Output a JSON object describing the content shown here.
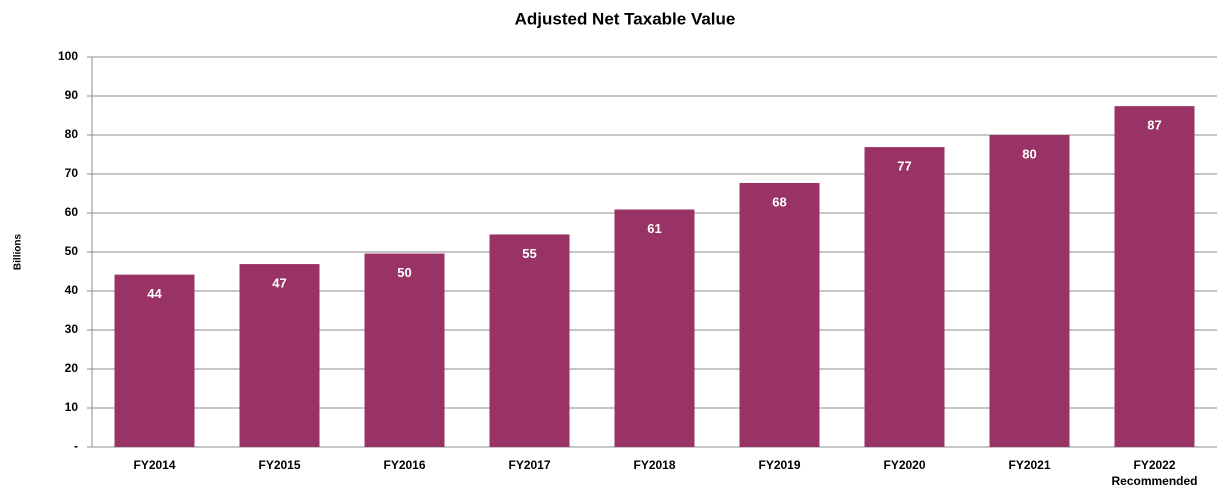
{
  "chart_data": {
    "type": "bar",
    "title": "Adjusted Net Taxable Value",
    "y_label": "Billions",
    "categories": [
      "FY2014",
      "FY2015",
      "FY2016",
      "FY2017",
      "FY2018",
      "FY2019",
      "FY2020",
      "FY2021",
      "FY2022\nRecommended"
    ],
    "values": [
      44.2,
      46.9,
      49.6,
      54.5,
      60.9,
      67.7,
      76.9,
      80.0,
      87.4
    ],
    "value_labels": [
      "44",
      "47",
      "50",
      "55",
      "61",
      "68",
      "77",
      "80",
      "87"
    ],
    "color": "#993366",
    "ylim": [
      0,
      100
    ],
    "yticks": [
      {
        "value": 0,
        "label": "-"
      },
      10,
      20,
      30,
      40,
      50,
      60,
      70,
      80,
      90,
      100
    ],
    "grid": true
  }
}
